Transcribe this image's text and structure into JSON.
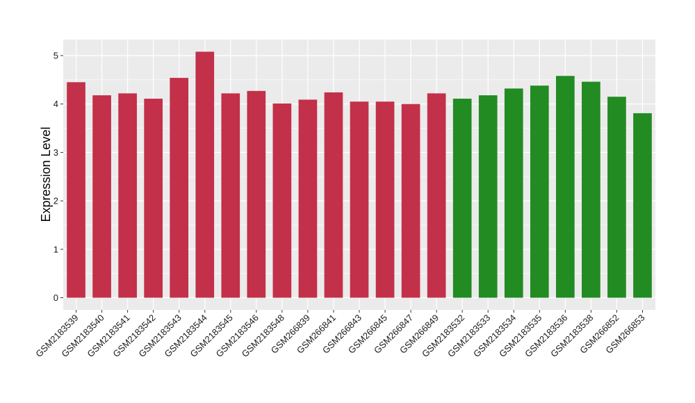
{
  "chart_data": {
    "type": "bar",
    "title": "",
    "xlabel": "",
    "ylabel": "Expression Level",
    "ylim": [
      0,
      5.3
    ],
    "yticks": [
      0,
      1,
      2,
      3,
      4,
      5
    ],
    "grid": true,
    "legend": "none",
    "colors": {
      "group_a": "#C3304A",
      "group_b": "#228B22",
      "panel": "#EBEBEB",
      "grid": "#FFFFFF"
    },
    "categories": [
      "GSM2183539",
      "GSM2183540",
      "GSM2183541",
      "GSM2183542",
      "GSM2183543",
      "GSM2183544",
      "GSM2183545",
      "GSM2183546",
      "GSM2183548",
      "GSM266839",
      "GSM266841",
      "GSM266843",
      "GSM266845",
      "GSM266847",
      "GSM266849",
      "GSM2183532",
      "GSM2183533",
      "GSM2183534",
      "GSM2183535",
      "GSM2183536",
      "GSM2183538",
      "GSM266852",
      "GSM266853"
    ],
    "values": [
      4.45,
      4.18,
      4.22,
      4.11,
      4.54,
      5.08,
      4.22,
      4.27,
      4.01,
      4.09,
      4.24,
      4.05,
      4.05,
      4.0,
      4.22,
      4.11,
      4.18,
      4.32,
      4.38,
      4.58,
      4.46,
      4.15,
      3.81
    ],
    "groups": [
      "a",
      "a",
      "a",
      "a",
      "a",
      "a",
      "a",
      "a",
      "a",
      "a",
      "a",
      "a",
      "a",
      "a",
      "a",
      "b",
      "b",
      "b",
      "b",
      "b",
      "b",
      "b",
      "b"
    ]
  }
}
